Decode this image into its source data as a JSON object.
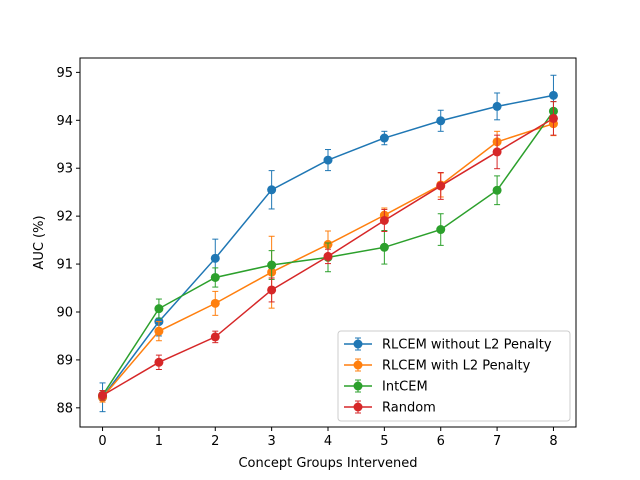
{
  "chart_data": {
    "type": "line",
    "title": "",
    "xlabel": "Concept Groups Intervened",
    "ylabel": "AUC (%)",
    "x": [
      0,
      1,
      2,
      3,
      4,
      5,
      6,
      7,
      8
    ],
    "xlim": [
      -0.4,
      8.4
    ],
    "ylim": [
      87.6,
      95.3
    ],
    "xticks": [
      0,
      1,
      2,
      3,
      4,
      5,
      6,
      7,
      8
    ],
    "yticks": [
      88,
      89,
      90,
      91,
      92,
      93,
      94,
      95
    ],
    "grid": false,
    "legend_position": "lower right",
    "series": [
      {
        "name": "RLCEM without L2 Penalty",
        "color": "#1f77b4",
        "values": [
          88.22,
          89.8,
          91.12,
          92.55,
          93.17,
          93.63,
          93.99,
          94.29,
          94.52
        ],
        "errors": [
          0.3,
          0.3,
          0.4,
          0.4,
          0.22,
          0.14,
          0.22,
          0.28,
          0.42
        ]
      },
      {
        "name": "RLCEM with L2 Penalty",
        "color": "#ff7f0e",
        "values": [
          88.22,
          89.6,
          90.18,
          90.83,
          91.41,
          92.02,
          92.65,
          93.55,
          93.93
        ],
        "errors": [
          0.1,
          0.2,
          0.25,
          0.75,
          0.28,
          0.15,
          0.25,
          0.22,
          0.25
        ]
      },
      {
        "name": "IntCEM",
        "color": "#2ca02c",
        "values": [
          88.26,
          90.07,
          90.72,
          90.98,
          91.14,
          91.35,
          91.72,
          92.54,
          94.19
        ],
        "errors": [
          0.1,
          0.2,
          0.2,
          0.3,
          0.3,
          0.35,
          0.33,
          0.3,
          0.2
        ]
      },
      {
        "name": "Random",
        "color": "#d62728",
        "values": [
          88.26,
          88.95,
          89.48,
          90.46,
          91.16,
          91.91,
          92.63,
          93.34,
          94.04
        ],
        "errors": [
          0.1,
          0.15,
          0.12,
          0.25,
          0.15,
          0.23,
          0.28,
          0.35,
          0.35
        ]
      }
    ]
  }
}
